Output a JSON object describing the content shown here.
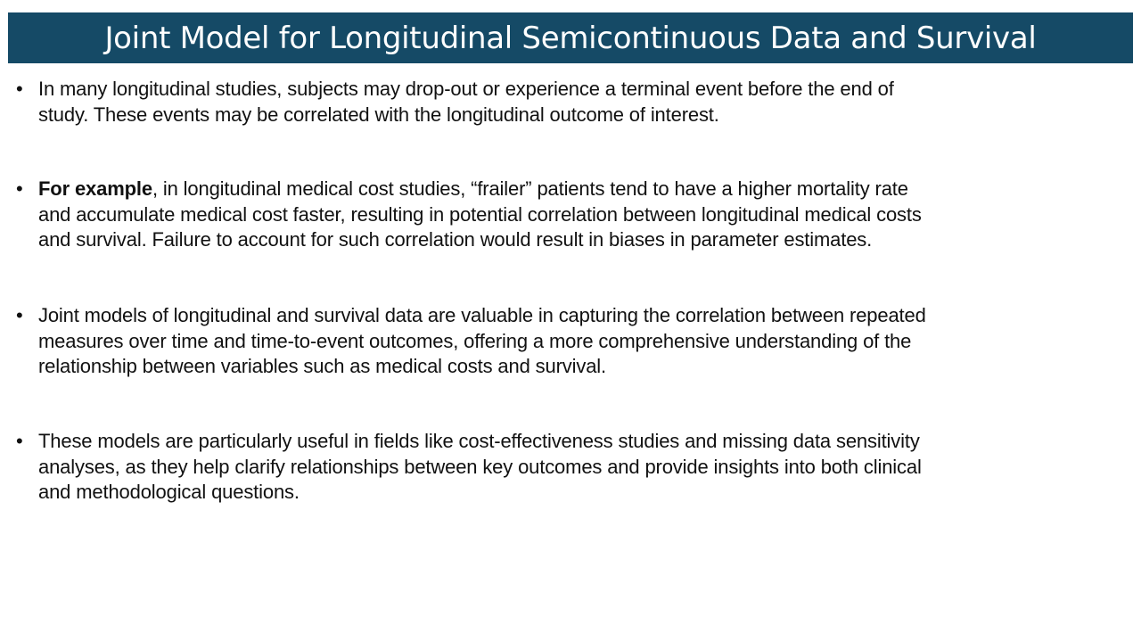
{
  "slide": {
    "title": "Joint Model for Longitudinal Semicontinuous Data and Survival",
    "bullet_symbol": "•",
    "colors": {
      "title_bar": "#154a66",
      "title_text": "#ffffff",
      "body_text": "#111111"
    },
    "bullets": [
      {
        "lines": [
          "In many longitudinal studies, subjects may drop-out or experience a terminal event before the end of",
          "study. These events may be correlated with the longitudinal outcome of interest."
        ]
      },
      {
        "bold_lead": "For example",
        "first_line_rest": ", in longitudinal medical cost studies, “frailer” patients tend to have a higher mortality rate",
        "lines": [
          "and accumulate medical cost faster, resulting in potential correlation between longitudinal medical costs",
          "and survival. Failure to account for such correlation would result in biases in parameter estimates."
        ]
      },
      {
        "lines": [
          "Joint models of longitudinal and survival data are valuable in capturing the correlation between repeated",
          "measures over time and time-to-event outcomes, offering a more comprehensive understanding of the",
          "relationship between variables such as medical costs and survival."
        ]
      },
      {
        "lines": [
          "These models are particularly useful in fields like cost-effectiveness studies and missing data sensitivity",
          "analyses, as they help clarify relationships between key outcomes and provide insights into both clinical",
          "and methodological questions."
        ]
      }
    ]
  }
}
